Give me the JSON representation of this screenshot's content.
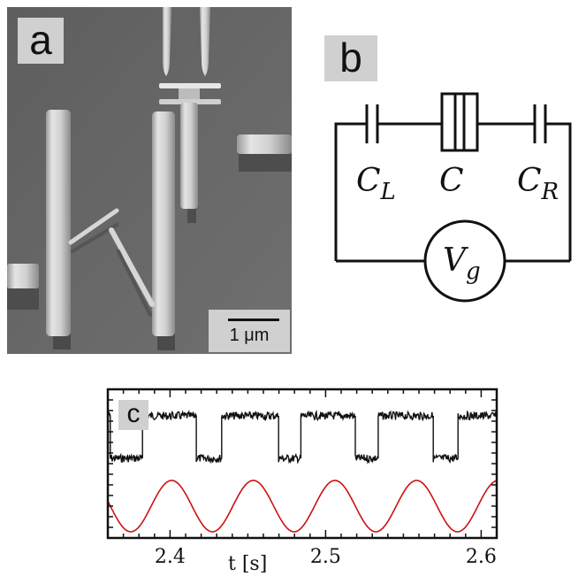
{
  "panel_a": {
    "label": "a",
    "scalebar_label": "1 μm"
  },
  "panel_b": {
    "label": "b",
    "cap_left_symbol": "C",
    "cap_left_sub": "L",
    "cap_center_symbol": "C",
    "cap_right_symbol": "C",
    "cap_right_sub": "R",
    "source_symbol": "V",
    "source_sub": "g"
  },
  "panel_c": {
    "label": "c",
    "chart_data": {
      "type": "line",
      "xlabel": "t [s]",
      "ylabel": "",
      "xlim": [
        2.36,
        2.61
      ],
      "x_ticks": [
        2.4,
        2.5,
        2.6
      ],
      "x_tick_labels": [
        "2.4",
        "2.5",
        "2.6"
      ],
      "series": [
        {
          "color": "#111111",
          "kind": "telegraph",
          "levels": [
            "high",
            "low"
          ],
          "switch_times": [
            2.3615,
            2.382,
            2.4165,
            2.433,
            2.4695,
            2.484,
            2.519,
            2.5335,
            2.569,
            2.585
          ],
          "initial_level": "high"
        },
        {
          "color": "#cc1111",
          "kind": "sinusoid",
          "period": 0.0525,
          "peak_times": [
            2.401,
            2.4535,
            2.506,
            2.5585,
            2.611
          ]
        }
      ]
    }
  }
}
